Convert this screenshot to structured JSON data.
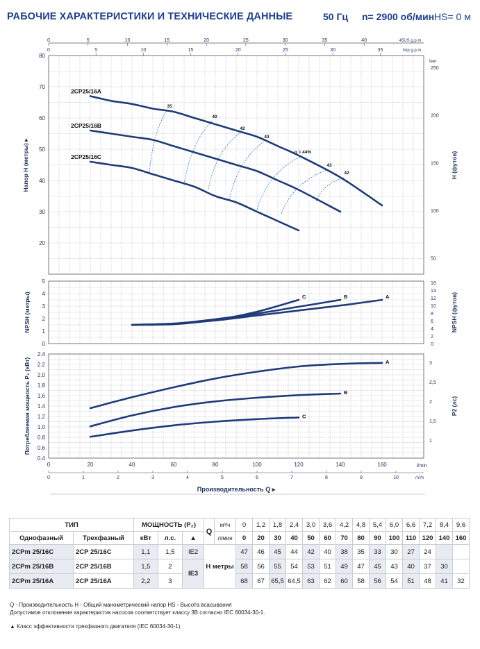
{
  "header": {
    "title": "РАБОЧИЕ ХАРАКТЕРИСТИКИ И ТЕХНИЧЕСКИЕ ДАННЫЕ",
    "freq": "50 Гц",
    "rpm": "n= 2900 об/мин",
    "hs": "HS= 0 м"
  },
  "colors": {
    "curve": "#1f3b78",
    "efficiency": "#2d7fd0",
    "grid": "#9aa0a8",
    "text": "#1b2f5e"
  },
  "chart_data": [
    {
      "type": "line",
      "name": "head",
      "ylabel": "Напор Н (метры)",
      "ylabel_right": "Н (футов)",
      "xlim": [
        0,
        180
      ],
      "ylim": [
        10,
        80
      ],
      "yticks": [
        "20",
        "30",
        "40",
        "50",
        "60",
        "70",
        "80"
      ],
      "yticks_right": [
        "50",
        "100",
        "150",
        "200",
        "250"
      ],
      "yunit_right": "feet",
      "top_axis_usgpm": {
        "unit": "45US g.p.m.",
        "ticks": [
          {
            "v": 0,
            "t": "0"
          },
          {
            "v": 5,
            "t": "5"
          },
          {
            "v": 10,
            "t": "10"
          },
          {
            "v": 15,
            "t": "15"
          },
          {
            "v": 20,
            "t": "20"
          },
          {
            "v": 25,
            "t": "25"
          },
          {
            "v": 30,
            "t": "30"
          },
          {
            "v": 35,
            "t": "35"
          },
          {
            "v": 40,
            "t": "40"
          }
        ]
      },
      "top_axis_impgpm": {
        "unit": "Imp g.p.m.",
        "ticks": [
          {
            "v": 5,
            "t": "5"
          },
          {
            "v": 10,
            "t": "10"
          },
          {
            "v": 15,
            "t": "15"
          },
          {
            "v": 20,
            "t": "20"
          },
          {
            "v": 25,
            "t": "25"
          },
          {
            "v": 30,
            "t": "30"
          },
          {
            "v": 35,
            "t": "35"
          }
        ]
      },
      "series": [
        {
          "name": "2CP25/16A",
          "x": [
            20,
            30,
            40,
            50,
            60,
            70,
            80,
            90,
            100,
            110,
            120,
            140,
            160
          ],
          "y": [
            67,
            65.5,
            64.5,
            63,
            62,
            60,
            58,
            56,
            54,
            51,
            48,
            41,
            32
          ]
        },
        {
          "name": "2CP25/16B",
          "x": [
            20,
            30,
            40,
            50,
            60,
            70,
            80,
            90,
            100,
            110,
            120,
            140
          ],
          "y": [
            56,
            55,
            54,
            53,
            51,
            49,
            47,
            45,
            43,
            40,
            37,
            30
          ]
        },
        {
          "name": "2CP25/16C",
          "x": [
            20,
            30,
            40,
            50,
            60,
            70,
            80,
            90,
            100,
            110,
            120
          ],
          "y": [
            46,
            45,
            44,
            42,
            40,
            38,
            35,
            33,
            30,
            27,
            24
          ]
        }
      ],
      "efficiency_labels": [
        "35",
        "40",
        "42",
        "43",
        "η = 44%",
        "43",
        "42"
      ]
    },
    {
      "type": "line",
      "name": "npsh",
      "ylabel": "NPSH (метры)",
      "ylabel_right": "NPSH (футов)",
      "ylim": [
        0,
        5
      ],
      "yticks": [
        "0",
        "1",
        "2",
        "3",
        "4",
        "5"
      ],
      "yticks_right": [
        "0",
        "2",
        "4",
        "6",
        "8",
        "10",
        "12",
        "14",
        "16"
      ],
      "series": [
        {
          "name": "A",
          "x": [
            40,
            60,
            80,
            100,
            120,
            140,
            160
          ],
          "y": [
            1.5,
            1.6,
            1.85,
            2.25,
            2.65,
            3.05,
            3.5
          ]
        },
        {
          "name": "B",
          "x": [
            40,
            60,
            80,
            100,
            120,
            140
          ],
          "y": [
            1.5,
            1.6,
            1.95,
            2.4,
            2.95,
            3.5
          ]
        },
        {
          "name": "C",
          "x": [
            40,
            60,
            80,
            100,
            120
          ],
          "y": [
            1.5,
            1.55,
            1.9,
            2.55,
            3.5
          ]
        }
      ]
    },
    {
      "type": "line",
      "name": "power",
      "ylabel": "Потребляемая мощность P₂ (кВт)",
      "ylabel_right": "P2 (лс)",
      "xlabel": "Производительность Q",
      "ylim": [
        0.4,
        2.4
      ],
      "yticks": [
        "0.4",
        "0.6",
        "0.8",
        "1.0",
        "1.2",
        "1.4",
        "1.6",
        "1.8",
        "2.0",
        "2.2",
        "2.4"
      ],
      "yticks_right": [
        "1",
        "1,5",
        "2",
        "2,5",
        "3"
      ],
      "xticks_lmin": [
        "0",
        "20",
        "40",
        "60",
        "80",
        "100",
        "120",
        "140",
        "160"
      ],
      "xunit_lmin": "l/min",
      "xticks_m3h": [
        "0",
        "1",
        "2",
        "3",
        "4",
        "5",
        "6",
        "7",
        "8",
        "9",
        "10"
      ],
      "xunit_m3h": "m³/h",
      "series": [
        {
          "name": "A",
          "x": [
            20,
            40,
            60,
            80,
            100,
            120,
            140,
            160
          ],
          "y": [
            1.36,
            1.57,
            1.76,
            1.93,
            2.06,
            2.16,
            2.21,
            2.23
          ]
        },
        {
          "name": "B",
          "x": [
            20,
            40,
            60,
            80,
            100,
            120,
            140
          ],
          "y": [
            1.01,
            1.22,
            1.38,
            1.49,
            1.56,
            1.61,
            1.64
          ]
        },
        {
          "name": "C",
          "x": [
            20,
            40,
            60,
            80,
            100,
            120
          ],
          "y": [
            0.81,
            0.93,
            1.03,
            1.1,
            1.15,
            1.18
          ]
        }
      ]
    }
  ],
  "table": {
    "type_label": "ТИП",
    "power_label": "МОЩНОСТЬ (P₂)",
    "single_phase": "Однофазный",
    "three_phase": "Трехфазный",
    "kw": "кВт",
    "hp": "л.с.",
    "triangle": "▲",
    "q_letter": "Q",
    "m3h": "м³/ч",
    "lmin": "л/мин",
    "h_meters": "Н метры",
    "q_m3h": [
      "0",
      "1,2",
      "1,8",
      "2,4",
      "3,0",
      "3,6",
      "4,2",
      "4,8",
      "5,4",
      "6,0",
      "6,6",
      "7,2",
      "8,4",
      "9,6"
    ],
    "q_lmin": [
      "0",
      "20",
      "30",
      "40",
      "50",
      "60",
      "70",
      "80",
      "90",
      "100",
      "110",
      "120",
      "140",
      "160"
    ],
    "rows": [
      {
        "single": "2CPm 25/16C",
        "three": "2CP 25/16C",
        "kw": "1,1",
        "hp": "1,5",
        "ie": "IE2",
        "h": [
          "47",
          "46",
          "45",
          "44",
          "42",
          "40",
          "38",
          "35",
          "33",
          "30",
          "27",
          "24",
          "",
          ""
        ]
      },
      {
        "single": "2CPm 25/16B",
        "three": "2CP 25/16B",
        "kw": "1,5",
        "hp": "2",
        "ie": "IE3",
        "h": [
          "58",
          "56",
          "55",
          "54",
          "53",
          "51",
          "49",
          "47",
          "45",
          "43",
          "40",
          "37",
          "30",
          ""
        ]
      },
      {
        "single": "2CPm 25/16A",
        "three": "2CP 25/16A",
        "kw": "2,2",
        "hp": "3",
        "ie": "",
        "h": [
          "68",
          "67",
          "65,5",
          "64,5",
          "63",
          "62",
          "60",
          "58",
          "56",
          "54",
          "51",
          "48",
          "41",
          "32"
        ]
      }
    ]
  },
  "notes": {
    "legend": "Q - Производительность   H - Общий манометрический напор   HS - Высота всасывания",
    "tolerance": "Допустимое отклонение характеристик насосов соответствует классу 3B согласно IEC 60034-30-1.",
    "triangle_note": "▲  Класс эффективности трехфазного двигателя (IEC 60034-30-1)"
  }
}
